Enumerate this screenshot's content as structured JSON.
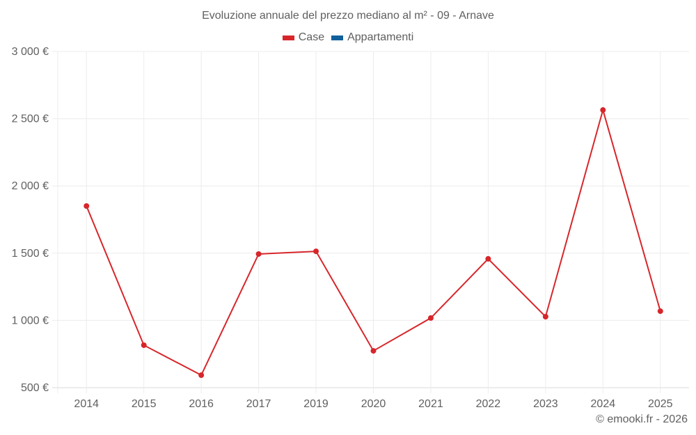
{
  "title": "Evoluzione annuale del prezzo mediano al m² - 09 - Arnave",
  "legend": [
    {
      "label": "Case",
      "color": "#d7262a"
    },
    {
      "label": "Appartamenti",
      "color": "#10609c"
    }
  ],
  "copyright": "© emooki.fr - 2026",
  "chart_data": {
    "type": "line",
    "title": "Evoluzione annuale del prezzo mediano al m² - 09 - Arnave",
    "xlabel": "",
    "ylabel": "",
    "categories": [
      "2014",
      "2015",
      "2016",
      "2017",
      "2019",
      "2020",
      "2021",
      "2022",
      "2023",
      "2024",
      "2025"
    ],
    "series": [
      {
        "name": "Case",
        "color": "#d7262a",
        "values": [
          1851,
          816,
          593,
          1494,
          1514,
          774,
          1018,
          1458,
          1028,
          2565,
          1069
        ]
      },
      {
        "name": "Appartamenti",
        "color": "#10609c",
        "values": []
      }
    ],
    "yticks": [
      500,
      1000,
      1500,
      2000,
      2500,
      3000
    ],
    "ytick_labels": [
      "500 €",
      "1 000 €",
      "1 500 €",
      "2 000 €",
      "2 500 €",
      "3 000 €"
    ],
    "ylim": [
      500,
      3000
    ],
    "grid": true,
    "legend_position": "top"
  }
}
